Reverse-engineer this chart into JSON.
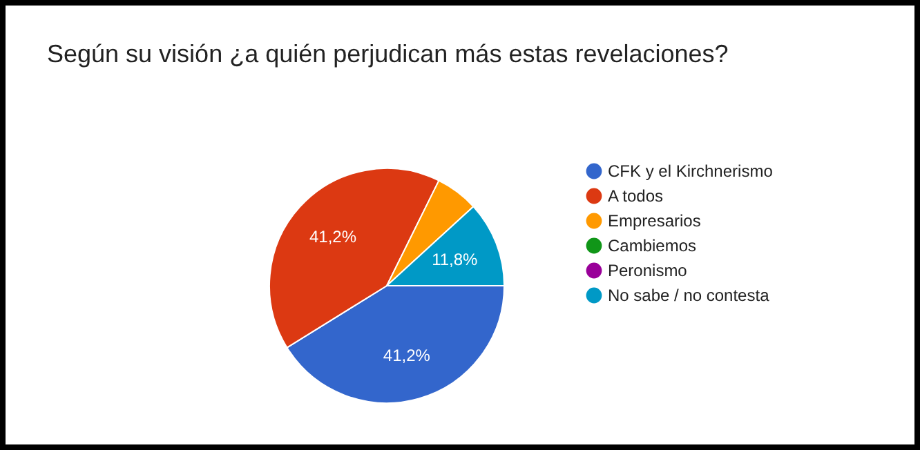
{
  "chart_data": {
    "type": "pie",
    "title": "Según su visión ¿a quién perjudican más estas revelaciones?",
    "categories": [
      "CFK y el Kirchnerismo",
      "A todos",
      "Empresarios",
      "Cambiemos",
      "Peronismo",
      "No sabe / no contesta"
    ],
    "values": [
      41.2,
      41.2,
      5.9,
      0,
      0,
      11.8
    ],
    "colors": [
      "#3366cc",
      "#dc3912",
      "#ff9900",
      "#109618",
      "#990099",
      "#0099c6"
    ],
    "value_labels": [
      "41,2%",
      "41,2%",
      null,
      null,
      null,
      "11,8%"
    ],
    "legend": "right"
  }
}
